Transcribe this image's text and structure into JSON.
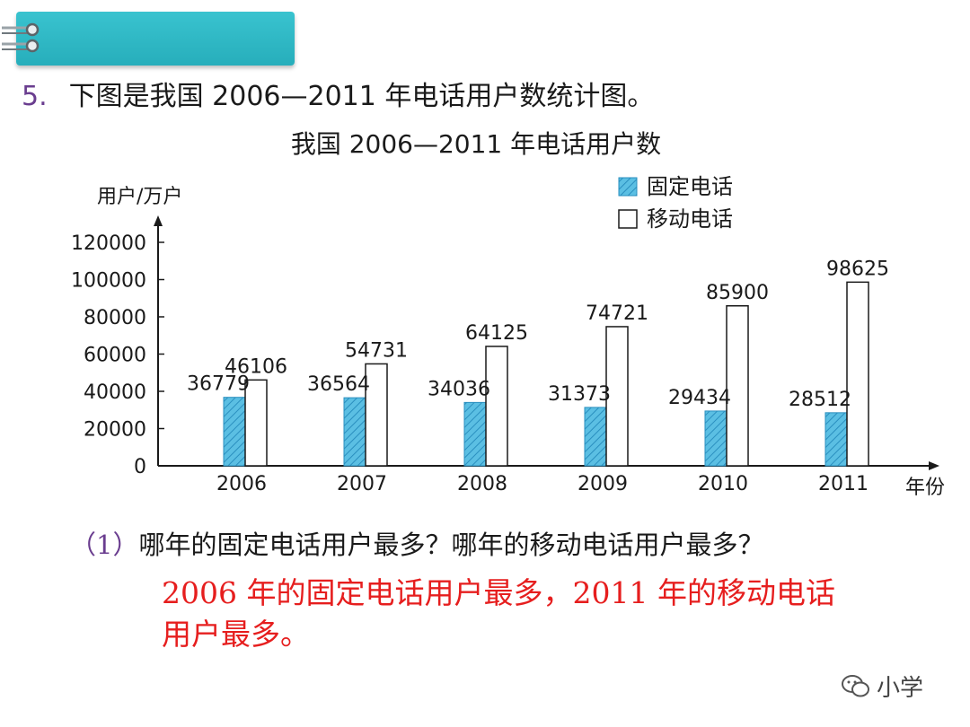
{
  "question": {
    "number": "5.",
    "text": "下图是我国 2006—2011 年电话用户数统计图。"
  },
  "chart_data": {
    "type": "bar",
    "title": "我国 2006—2011 年电话用户数",
    "ylabel": "用户/万户",
    "xlabel": "年份",
    "ylim": [
      0,
      120000
    ],
    "yticks": [
      0,
      20000,
      40000,
      60000,
      80000,
      100000,
      120000
    ],
    "categories": [
      "2006",
      "2007",
      "2008",
      "2009",
      "2010",
      "2011"
    ],
    "series": [
      {
        "name": "固定电话",
        "values": [
          36779,
          36564,
          34036,
          31373,
          29434,
          28512
        ],
        "color": "#5bbfe3",
        "pattern": "hatched"
      },
      {
        "name": "移动电话",
        "values": [
          46106,
          54731,
          64125,
          74721,
          85900,
          98625
        ],
        "color": "#ffffff",
        "pattern": "none"
      }
    ],
    "grid": false,
    "legend_position": "top-right"
  },
  "sub_question": {
    "label": "（1）",
    "text": "哪年的固定电话用户最多？哪年的移动电话用户最多？"
  },
  "answer": {
    "text": "2006 年的固定电话用户最多，2011 年的移动电话用户最多。"
  },
  "watermark": {
    "text": "小学"
  }
}
